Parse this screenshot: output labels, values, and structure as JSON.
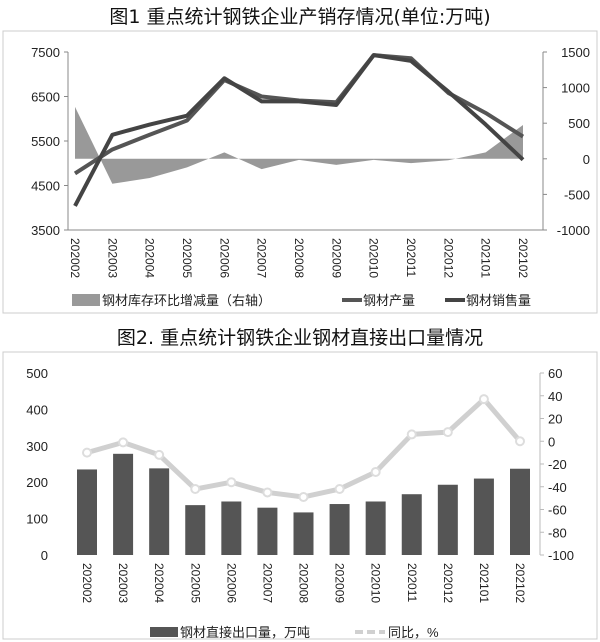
{
  "chart_data": [
    {
      "type": "line+area",
      "title": "图1  重点统计钢铁企业产销存情况(单位:万吨)",
      "categories": [
        "202002",
        "202003",
        "202004",
        "202005",
        "202006",
        "202007",
        "202008",
        "202009",
        "202010",
        "202011",
        "202012",
        "202101",
        "202102"
      ],
      "left_ylim": [
        3500,
        7500
      ],
      "left_ticks": [
        "7500",
        "6500",
        "5500",
        "4500",
        "3500"
      ],
      "right_ylim": [
        -1000,
        1500
      ],
      "right_ticks": [
        "1500",
        "1000",
        "500",
        "0",
        "-500",
        "-1000"
      ],
      "series": [
        {
          "name": "钢材库存环比增减量（右轴）",
          "axis": "right",
          "kind": "area",
          "color": "#999999",
          "values": [
            730,
            -350,
            -270,
            -120,
            90,
            -145,
            -15,
            -85,
            -15,
            -60,
            -20,
            90,
            475
          ]
        },
        {
          "name": "钢材产量",
          "axis": "left",
          "kind": "line",
          "color": "#555555",
          "values": [
            4770,
            5310,
            5640,
            5960,
            6870,
            6500,
            6410,
            6370,
            7430,
            7360,
            6580,
            6130,
            5600
          ]
        },
        {
          "name": "钢材销售量",
          "axis": "left",
          "kind": "line",
          "color": "#444444",
          "values": [
            4040,
            5640,
            5870,
            6070,
            6910,
            6390,
            6390,
            6310,
            7430,
            7300,
            6610,
            5870,
            5080
          ]
        }
      ],
      "legend": "bottom"
    },
    {
      "type": "bar+line",
      "title": "图2. 重点统计钢铁企业钢材直接出口量情况",
      "categories": [
        "202002",
        "202003",
        "202004",
        "202005",
        "202006",
        "202007",
        "202008",
        "202009",
        "202010",
        "202011",
        "202012",
        "202101",
        "202102"
      ],
      "left_ylim": [
        0,
        500
      ],
      "left_ticks": [
        "500",
        "400",
        "300",
        "200",
        "100",
        "0"
      ],
      "right_ylim": [
        -100,
        60
      ],
      "right_ticks": [
        "60",
        "40",
        "20",
        "0",
        "-20",
        "-40",
        "-60",
        "-80",
        "-100"
      ],
      "series": [
        {
          "name": "钢材直接出口量，万吨",
          "axis": "left",
          "kind": "bar",
          "color": "#555555",
          "values": [
            235,
            278,
            238,
            137,
            147,
            130,
            117,
            140,
            147,
            167,
            193,
            210,
            237
          ]
        },
        {
          "name": "同比，%",
          "axis": "right",
          "kind": "line",
          "color": "#d0d0d0",
          "values": [
            -10,
            -1,
            -12,
            -42,
            -36,
            -45,
            -49,
            -42,
            -27,
            6,
            8,
            37,
            0
          ]
        }
      ],
      "legend": "bottom"
    }
  ]
}
